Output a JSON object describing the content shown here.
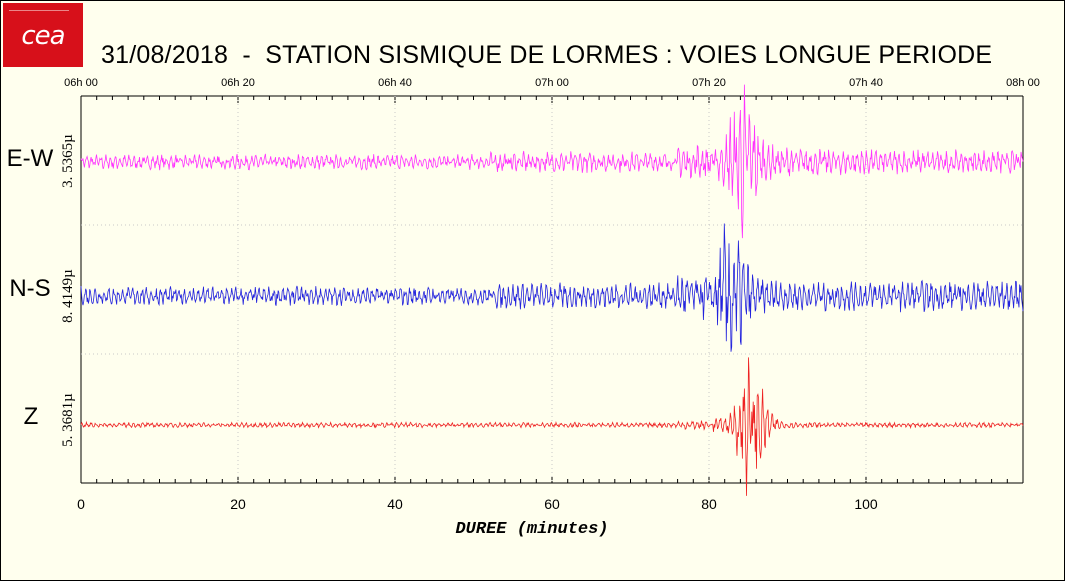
{
  "logo": {
    "text": "cea"
  },
  "chart_data": {
    "type": "line",
    "title": "31/08/2018  -  STATION SISMIQUE DE LORMES : VOIES LONGUE PERIODE",
    "xlabel": "DUREE (minutes)",
    "xlim": [
      0,
      120
    ],
    "x_ticks_bottom": [
      0,
      20,
      40,
      60,
      80,
      100
    ],
    "time_ticks_top": [
      "06h 00",
      "06h 20",
      "06h 40",
      "07h 00",
      "07h 20",
      "07h 40",
      "08h 00"
    ],
    "grid": true,
    "channels": [
      {
        "name": "E-W",
        "scale": "3. 5365µ",
        "color": "#ff33ff",
        "onset_min": 80.5,
        "peak_min": 84,
        "noise_level": 0.12,
        "peak_amplitude": 1.0
      },
      {
        "name": "N-S",
        "scale": "8. 4149µ",
        "color": "#2222dd",
        "onset_min": 80.5,
        "peak_min": 82.5,
        "noise_level": 0.15,
        "peak_amplitude": 1.0
      },
      {
        "name": "Z",
        "scale": "5. 3681µ",
        "color": "#ee2222",
        "onset_min": 80.5,
        "peak_min": 85,
        "noise_level": 0.04,
        "peak_amplitude": 1.0
      }
    ]
  }
}
